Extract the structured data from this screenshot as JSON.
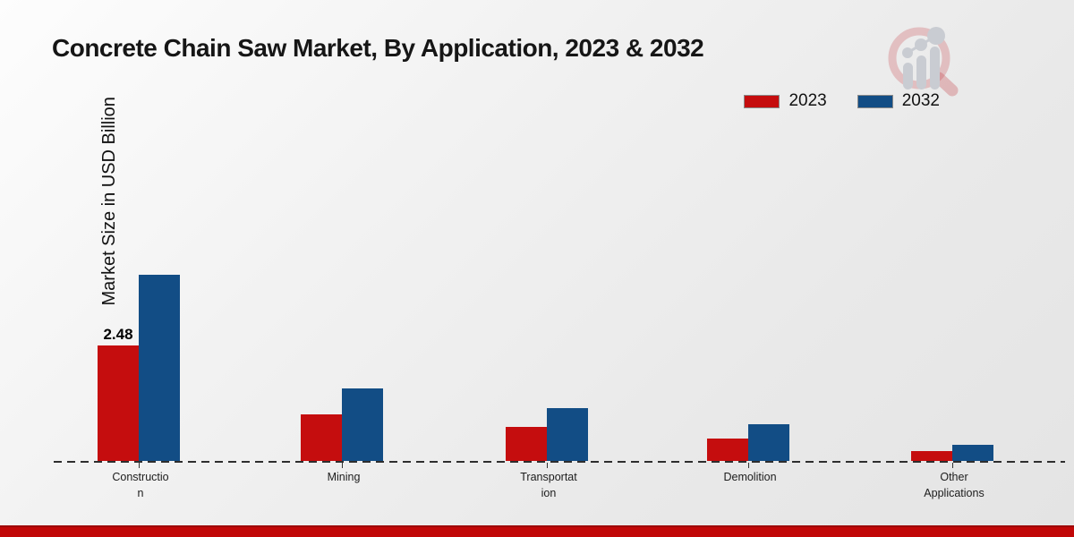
{
  "header": {
    "title": "Concrete Chain Saw Market, By Application, 2023 & 2032",
    "logo_icon": "magnifier-bar-chart-logo"
  },
  "legend": [
    {
      "label": "2023",
      "color": "#c50d0e"
    },
    {
      "label": "2032",
      "color": "#124d85"
    }
  ],
  "axis": {
    "y_label": "Market Size in USD Billion"
  },
  "chart_data": {
    "type": "bar",
    "title": "Concrete Chain Saw Market, By Application, 2023 & 2032",
    "xlabel": "",
    "ylabel": "Market Size in USD Billion",
    "categories": [
      "Construction",
      "Mining",
      "Transportation",
      "Demolition",
      "Other Applications"
    ],
    "category_label_lines": [
      [
        "Constructio",
        "n"
      ],
      [
        "Mining"
      ],
      [
        "Transportat",
        "ion"
      ],
      [
        "Demolition"
      ],
      [
        "Other",
        "Applications"
      ]
    ],
    "series": [
      {
        "name": "2023",
        "color": "#c50d0e",
        "values": [
          2.48,
          1.0,
          0.72,
          0.48,
          0.21
        ],
        "data_labels": [
          "2.48",
          "",
          "",
          "",
          ""
        ]
      },
      {
        "name": "2032",
        "color": "#124d85",
        "values": [
          3.98,
          1.55,
          1.13,
          0.78,
          0.35
        ],
        "data_labels": [
          "",
          "",
          "",
          "",
          ""
        ]
      }
    ],
    "ylim": [
      0,
      4.4
    ],
    "grid": false,
    "baseline_style": "dashed",
    "legend_position": "top-right"
  },
  "footer": {
    "bar_color": "#c10707"
  }
}
